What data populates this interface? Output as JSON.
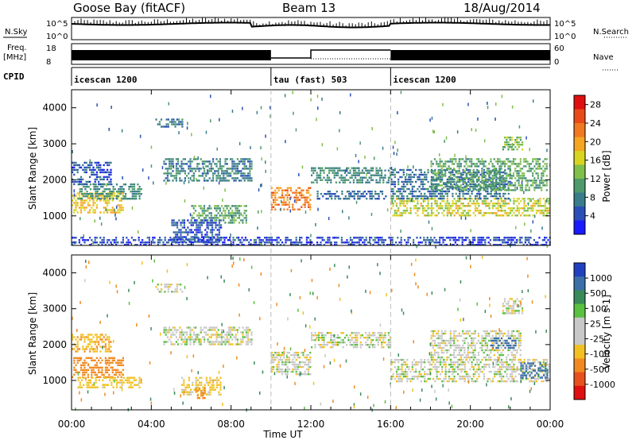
{
  "header": {
    "title_left": "Goose Bay (fitACF)",
    "title_center": "Beam 13",
    "title_right": "18/Aug/2014"
  },
  "noise_panel": {
    "left_label": "N.Sky",
    "right_label": "N.Search",
    "left_tick_top": "10^5",
    "left_tick_bottom": "10^0",
    "right_tick_top": "10^5",
    "right_tick_bottom": "10^0"
  },
  "freq_panel": {
    "left_label_line1": "Freq.",
    "left_label_line2": "[MHz]",
    "right_label": "Nave",
    "left_tick_top": "18",
    "left_tick_bottom": "8",
    "right_tick_top": "60",
    "right_tick_bottom": "0"
  },
  "cpid": {
    "label": "CPID",
    "segments": [
      {
        "label": "icescan 1200",
        "start_hour": 0,
        "end_hour": 10
      },
      {
        "label": "tau (fast) 503",
        "start_hour": 10,
        "end_hour": 16
      },
      {
        "label": "icescan 1200",
        "start_hour": 16,
        "end_hour": 24
      }
    ]
  },
  "colors": {
    "power_scale": [
      "#1a1aff",
      "#2a4fb8",
      "#3a7d8a",
      "#4e9a6a",
      "#7fbf4a",
      "#d8d420",
      "#f5a623",
      "#f07820",
      "#e84a1a",
      "#e01010"
    ],
    "velocity_scale": [
      "#2040c0",
      "#3a6fa8",
      "#3a8a5a",
      "#5ac040",
      "#c8c8c8",
      "#c8c8c8",
      "#f2c020",
      "#f08a20",
      "#e85020",
      "#e01010"
    ],
    "ground_scatter": "#a0a0a0"
  },
  "chart_data": [
    {
      "type": "heatmap",
      "name": "power",
      "ylabel": "Slant Range [km]",
      "yticks": [
        1000,
        2000,
        3000,
        4000
      ],
      "ylim": [
        180,
        4500
      ],
      "xlim": [
        0,
        24
      ],
      "colorbar": {
        "label": "Power [dB]",
        "ticks": [
          "4",
          "8",
          "12",
          "16",
          "20",
          "24",
          "28"
        ],
        "range": [
          0,
          30
        ]
      },
      "blobs": [
        {
          "t0": 0.0,
          "t1": 2.6,
          "r0": 1100,
          "r1": 1650,
          "v": 18
        },
        {
          "t0": 0.3,
          "t1": 3.5,
          "r0": 1500,
          "r1": 1900,
          "v": 9
        },
        {
          "t0": 0.0,
          "t1": 2.0,
          "r0": 1900,
          "r1": 2500,
          "v": 5
        },
        {
          "t0": 4.6,
          "t1": 9.0,
          "r0": 2000,
          "r1": 2600,
          "v": 8
        },
        {
          "t0": 6.0,
          "t1": 8.8,
          "r0": 800,
          "r1": 1300,
          "v": 11
        },
        {
          "t0": 5.0,
          "t1": 7.5,
          "r0": 250,
          "r1": 900,
          "v": 5
        },
        {
          "t0": 10.0,
          "t1": 12.0,
          "r0": 1150,
          "r1": 1800,
          "v": 22
        },
        {
          "t0": 12.0,
          "t1": 16.0,
          "r0": 1900,
          "r1": 2350,
          "v": 9
        },
        {
          "t0": 12.3,
          "t1": 15.8,
          "r0": 1500,
          "r1": 1700,
          "v": 6
        },
        {
          "t0": 16.0,
          "t1": 23.9,
          "r0": 1000,
          "r1": 1500,
          "v": 16
        },
        {
          "t0": 16.0,
          "t1": 22.0,
          "r0": 1500,
          "r1": 2300,
          "v": 7
        },
        {
          "t0": 18.0,
          "t1": 23.8,
          "r0": 1700,
          "r1": 2600,
          "v": 11
        },
        {
          "t0": 21.6,
          "t1": 22.6,
          "r0": 2850,
          "r1": 3200,
          "v": 13
        },
        {
          "t0": 4.2,
          "t1": 5.6,
          "r0": 3500,
          "r1": 3700,
          "v": 7
        },
        {
          "t0": 0.0,
          "t1": 24.0,
          "r0": 180,
          "r1": 420,
          "v": 4
        }
      ]
    },
    {
      "type": "heatmap",
      "name": "velocity",
      "ylabel": "Slant Range [km]",
      "yticks": [
        1000,
        2000,
        3000,
        4000
      ],
      "ylim": [
        180,
        4500
      ],
      "xlim": [
        0,
        24
      ],
      "colorbar": {
        "label": "Velocity [m s-1]",
        "ticks": [
          "1000",
          "500",
          "100",
          "25",
          "-25",
          "-100",
          "-500",
          "-1000"
        ],
        "range": [
          -1000,
          1000
        ]
      },
      "blobs": [
        {
          "t0": 0.0,
          "t1": 2.6,
          "r0": 1100,
          "r1": 1650,
          "v": -300
        },
        {
          "t0": 0.3,
          "t1": 3.5,
          "r0": 800,
          "r1": 1100,
          "v": -60
        },
        {
          "t0": 0.0,
          "t1": 2.0,
          "r0": 1800,
          "r1": 2300,
          "v": -80
        },
        {
          "t0": 4.6,
          "t1": 9.0,
          "r0": 2000,
          "r1": 2500,
          "v": 0
        },
        {
          "t0": 5.5,
          "t1": 7.5,
          "r0": 600,
          "r1": 1100,
          "v": -50
        },
        {
          "t0": 6.2,
          "t1": 6.7,
          "r0": 500,
          "r1": 800,
          "v": -400
        },
        {
          "t0": 10.0,
          "t1": 12.0,
          "r0": 1150,
          "r1": 1800,
          "v": 0
        },
        {
          "t0": 12.0,
          "t1": 16.0,
          "r0": 1900,
          "r1": 2350,
          "v": 0
        },
        {
          "t0": 16.0,
          "t1": 23.9,
          "r0": 1000,
          "r1": 1600,
          "v": 0
        },
        {
          "t0": 18.0,
          "t1": 22.5,
          "r0": 1600,
          "r1": 2400,
          "v": 0
        },
        {
          "t0": 21.0,
          "t1": 22.3,
          "r0": 1900,
          "r1": 2200,
          "v": 600
        },
        {
          "t0": 22.5,
          "t1": 23.9,
          "r0": 1100,
          "r1": 1500,
          "v": 800
        },
        {
          "t0": 21.6,
          "t1": 22.6,
          "r0": 2900,
          "r1": 3300,
          "v": 0
        },
        {
          "t0": 4.2,
          "t1": 5.6,
          "r0": 3500,
          "r1": 3700,
          "v": 0
        }
      ]
    }
  ],
  "x_axis": {
    "label": "Time UT",
    "ticks": [
      "00:00",
      "04:00",
      "08:00",
      "12:00",
      "16:00",
      "20:00",
      "00:00"
    ]
  }
}
